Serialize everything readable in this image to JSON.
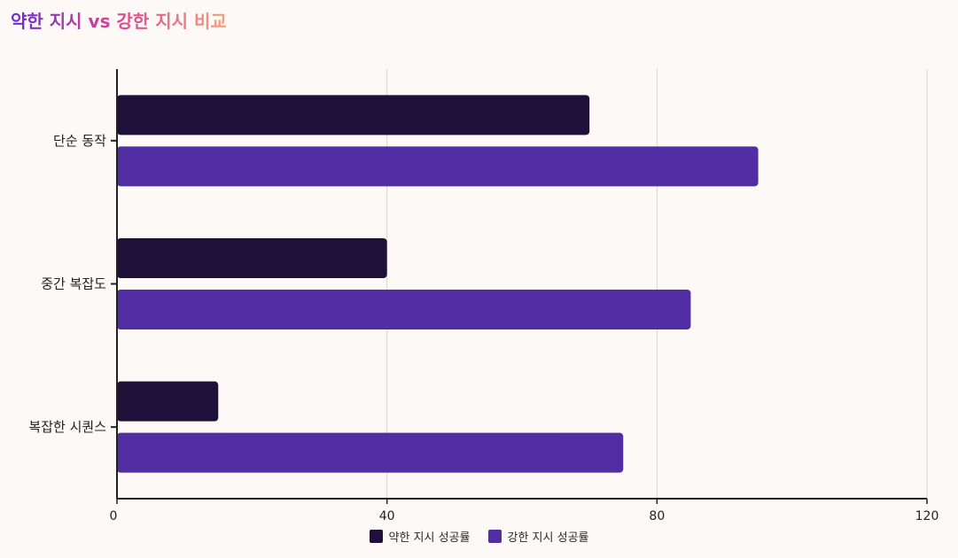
{
  "title": "약한 지시 vs 강한 지시 비교",
  "chart_data": {
    "type": "bar",
    "orientation": "horizontal",
    "categories": [
      "단순 동작",
      "중간 복잡도",
      "복잡한 시퀀스"
    ],
    "series": [
      {
        "name": "약한 지시 성공률",
        "values": [
          70,
          40,
          15
        ],
        "color": "#1e1038"
      },
      {
        "name": "강한 지시 성공률",
        "values": [
          95,
          85,
          75
        ],
        "color": "#522ea5"
      }
    ],
    "xlim": [
      0,
      120
    ],
    "xticks": [
      "0",
      "40",
      "80",
      "120"
    ],
    "grid": "vertical",
    "legend": "bottom-center"
  }
}
